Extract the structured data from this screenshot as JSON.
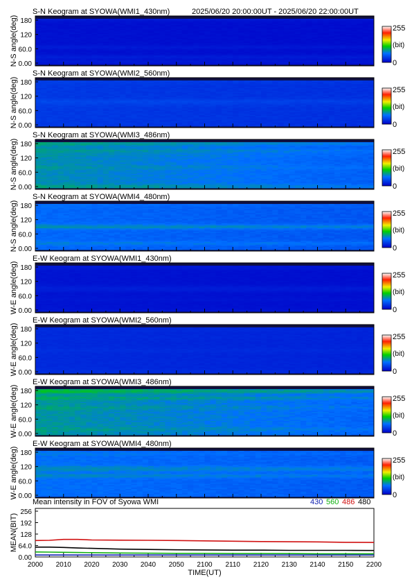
{
  "header": {
    "time_range": "2025/06/20 20:00:00UT - 2025/06/20 22:00:00UT"
  },
  "colorbar": {
    "max_label": "255",
    "unit_label": "(bit)",
    "min_label": "0"
  },
  "colors": {
    "series_430": "#1020b0",
    "series_560": "#10b010",
    "series_486": "#d01010",
    "series_480": "#000000"
  },
  "chart_data": [
    {
      "type": "heatmap",
      "title": "S-N Keogram at SYOWA(WMI1_430nm)",
      "ylabel": "N-S angle(deg)",
      "yticks": [
        "180",
        "120",
        "60.0",
        "0.00"
      ],
      "ylim": [
        0,
        180
      ],
      "xlim": [
        "20:00",
        "22:00"
      ],
      "value_range": [
        0,
        255
      ],
      "intensity_bit": {
        "base": 8,
        "peak": 18
      }
    },
    {
      "type": "heatmap",
      "title": "S-N Keogram at SYOWA(WMI2_560nm)",
      "ylabel": "N-S angle(deg)",
      "yticks": [
        "180",
        "120",
        "60.0",
        "0.00"
      ],
      "ylim": [
        0,
        180
      ],
      "xlim": [
        "20:00",
        "22:00"
      ],
      "value_range": [
        0,
        255
      ],
      "intensity_bit": {
        "base": 30,
        "peak": 45
      }
    },
    {
      "type": "heatmap",
      "title": "S-N Keogram at SYOWA(WMI3_486nm)",
      "ylabel": "N-S angle(deg)",
      "yticks": [
        "180",
        "120",
        "60.0",
        "0.00"
      ],
      "ylim": [
        0,
        180
      ],
      "xlim": [
        "20:00",
        "22:00"
      ],
      "value_range": [
        0,
        255
      ],
      "intensity_bit": {
        "base": 75,
        "peak": 100
      }
    },
    {
      "type": "heatmap",
      "title": "S-N Keogram at SYOWA(WMI4_480nm)",
      "ylabel": "N-S angle(deg)",
      "yticks": [
        "180",
        "120",
        "60.0",
        "0.00"
      ],
      "ylim": [
        0,
        180
      ],
      "xlim": [
        "20:00",
        "22:00"
      ],
      "value_range": [
        0,
        255
      ],
      "intensity_bit": {
        "base": 55,
        "peak": 80
      }
    },
    {
      "type": "heatmap",
      "title": "E-W Keogram at SYOWA(WMI1_430nm)",
      "ylabel": "W-E angle(deg)",
      "yticks": [
        "180",
        "120",
        "60.0",
        "0.00"
      ],
      "ylim": [
        0,
        180
      ],
      "xlim": [
        "20:00",
        "22:00"
      ],
      "value_range": [
        0,
        255
      ],
      "intensity_bit": {
        "base": 10,
        "peak": 18
      }
    },
    {
      "type": "heatmap",
      "title": "E-W Keogram at SYOWA(WMI2_560nm)",
      "ylabel": "W-E angle(deg)",
      "yticks": [
        "180",
        "120",
        "60.0",
        "0.00"
      ],
      "ylim": [
        0,
        180
      ],
      "xlim": [
        "20:00",
        "22:00"
      ],
      "value_range": [
        0,
        255
      ],
      "intensity_bit": {
        "base": 22,
        "peak": 32
      }
    },
    {
      "type": "heatmap",
      "title": "E-W Keogram at SYOWA(WMI3_486nm)",
      "ylabel": "W-E angle(deg)",
      "yticks": [
        "180",
        "120",
        "60.0",
        "0.00"
      ],
      "ylim": [
        0,
        180
      ],
      "xlim": [
        "20:00",
        "22:00"
      ],
      "value_range": [
        0,
        255
      ],
      "intensity_bit": {
        "base": 78,
        "peak": 110
      }
    },
    {
      "type": "heatmap",
      "title": "E-W Keogram at SYOWA(WMI4_480nm)",
      "ylabel": "W-E angle(deg)",
      "yticks": [
        "180",
        "120",
        "60.0",
        "0.00"
      ],
      "ylim": [
        0,
        180
      ],
      "xlim": [
        "20:00",
        "22:00"
      ],
      "value_range": [
        0,
        255
      ],
      "intensity_bit": {
        "base": 58,
        "peak": 85
      }
    },
    {
      "type": "line",
      "title": "Mean intensity in FOV of Syowa WMI",
      "ylabel": "MEAN(BIT)",
      "xlabel": "TIME(UT)",
      "ylim": [
        0,
        256
      ],
      "yticks": [
        "256",
        "192",
        "128",
        "64.0",
        "0.00"
      ],
      "xticks": [
        "2000",
        "2010",
        "2020",
        "2030",
        "2040",
        "2050",
        "2100",
        "2110",
        "2120",
        "2130",
        "2140",
        "2150",
        "2200"
      ],
      "x": [
        0,
        5,
        10,
        15,
        20,
        30,
        40,
        50,
        60,
        70,
        80,
        90,
        100,
        110,
        120
      ],
      "series": [
        {
          "name": "430",
          "values": [
            11,
            11,
            11,
            11,
            11,
            11,
            11,
            11,
            11,
            11,
            11,
            11,
            11,
            11,
            11
          ]
        },
        {
          "name": "560",
          "values": [
            28,
            27,
            26,
            25,
            24,
            22,
            21,
            20,
            20,
            19,
            19,
            19,
            18,
            18,
            18
          ]
        },
        {
          "name": "486",
          "values": [
            92,
            93,
            98,
            98,
            95,
            94,
            93,
            92,
            90,
            88,
            86,
            85,
            84,
            82,
            81
          ]
        },
        {
          "name": "480",
          "values": [
            55,
            55,
            53,
            50,
            48,
            44,
            42,
            40,
            39,
            38,
            38,
            37,
            37,
            37,
            36
          ]
        }
      ]
    }
  ]
}
